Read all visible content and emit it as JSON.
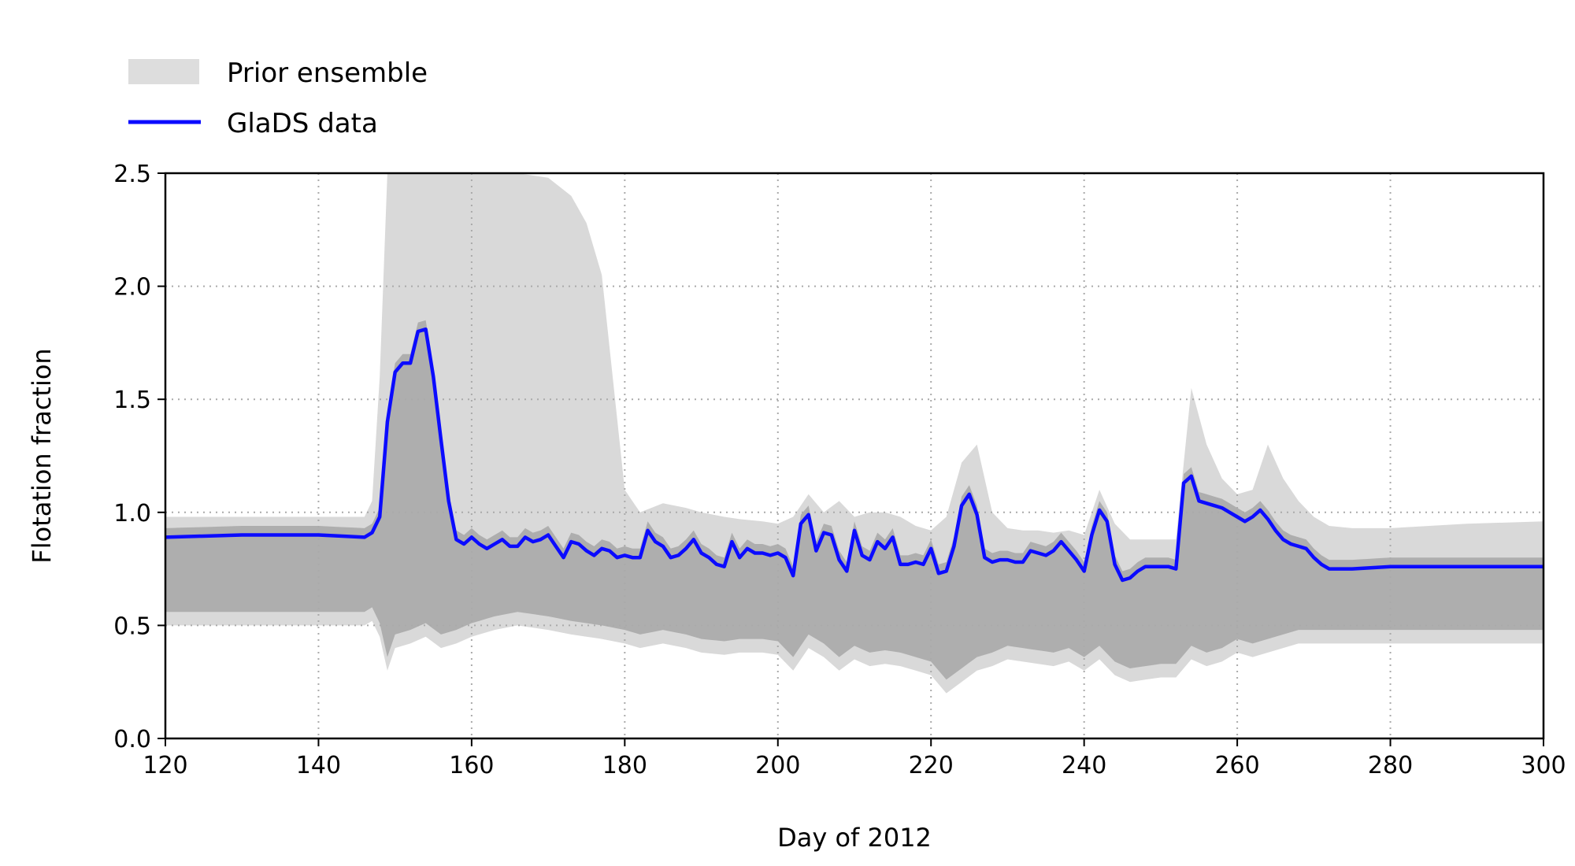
{
  "chart_data": {
    "type": "line",
    "title": "",
    "xlabel": "Day of 2012",
    "ylabel": "Flotation fraction",
    "xlim": [
      120,
      300
    ],
    "ylim": [
      0.0,
      2.5
    ],
    "xticks": [
      120,
      140,
      160,
      180,
      200,
      220,
      240,
      260,
      280,
      300
    ],
    "yticks": [
      0.0,
      0.5,
      1.0,
      1.5,
      2.0,
      2.5
    ],
    "xtick_labels": [
      "120",
      "140",
      "160",
      "180",
      "200",
      "220",
      "240",
      "260",
      "280",
      "300"
    ],
    "ytick_labels": [
      "0.0",
      "0.5",
      "1.0",
      "1.5",
      "2.0",
      "2.5"
    ],
    "grid": true,
    "grid_style": "dotted",
    "legend_position": "above-left",
    "legend": [
      {
        "label": "Prior ensemble",
        "type": "patch",
        "color": "#dddddd"
      },
      {
        "label": "GlaDS data",
        "type": "line",
        "color": "#0b0bff"
      }
    ],
    "colors": {
      "glads": "#0b0bff",
      "ensemble_light": "#d9d9d9",
      "ensemble_dark": "#8a8a8a"
    },
    "series": [
      {
        "name": "GlaDS data",
        "x": [
          120,
          130,
          140,
          146,
          147,
          148,
          149,
          150,
          151,
          152,
          153,
          154,
          155,
          156,
          157,
          158,
          159,
          160,
          161,
          162,
          163,
          164,
          165,
          166,
          167,
          168,
          169,
          170,
          171,
          172,
          173,
          174,
          175,
          176,
          177,
          178,
          179,
          180,
          181,
          182,
          183,
          184,
          185,
          186,
          187,
          188,
          189,
          190,
          191,
          192,
          193,
          194,
          195,
          196,
          197,
          198,
          199,
          200,
          201,
          202,
          203,
          204,
          205,
          206,
          207,
          208,
          209,
          210,
          211,
          212,
          213,
          214,
          215,
          216,
          217,
          218,
          219,
          220,
          221,
          222,
          223,
          224,
          225,
          226,
          227,
          228,
          229,
          230,
          231,
          232,
          233,
          234,
          235,
          236,
          237,
          238,
          239,
          240,
          241,
          242,
          243,
          244,
          245,
          246,
          247,
          248,
          249,
          250,
          251,
          252,
          253,
          254,
          255,
          256,
          257,
          258,
          259,
          260,
          261,
          262,
          263,
          264,
          265,
          266,
          267,
          268,
          269,
          270,
          271,
          272,
          273,
          275,
          280,
          290,
          300
        ],
        "y": [
          0.89,
          0.9,
          0.9,
          0.89,
          0.91,
          0.98,
          1.4,
          1.62,
          1.66,
          1.66,
          1.8,
          1.81,
          1.6,
          1.32,
          1.05,
          0.88,
          0.86,
          0.89,
          0.86,
          0.84,
          0.86,
          0.88,
          0.85,
          0.85,
          0.89,
          0.87,
          0.88,
          0.9,
          0.85,
          0.8,
          0.87,
          0.86,
          0.83,
          0.81,
          0.84,
          0.83,
          0.8,
          0.81,
          0.8,
          0.8,
          0.92,
          0.87,
          0.85,
          0.8,
          0.81,
          0.84,
          0.88,
          0.82,
          0.8,
          0.77,
          0.76,
          0.87,
          0.8,
          0.84,
          0.82,
          0.82,
          0.81,
          0.82,
          0.8,
          0.72,
          0.95,
          0.99,
          0.83,
          0.91,
          0.9,
          0.79,
          0.74,
          0.92,
          0.81,
          0.79,
          0.87,
          0.84,
          0.89,
          0.77,
          0.77,
          0.78,
          0.77,
          0.84,
          0.73,
          0.74,
          0.85,
          1.03,
          1.08,
          0.99,
          0.8,
          0.78,
          0.79,
          0.79,
          0.78,
          0.78,
          0.83,
          0.82,
          0.81,
          0.83,
          0.87,
          0.83,
          0.79,
          0.74,
          0.9,
          1.01,
          0.96,
          0.77,
          0.7,
          0.71,
          0.74,
          0.76,
          0.76,
          0.76,
          0.76,
          0.75,
          1.13,
          1.16,
          1.05,
          1.04,
          1.03,
          1.02,
          1.0,
          0.98,
          0.96,
          0.98,
          1.01,
          0.97,
          0.92,
          0.88,
          0.86,
          0.85,
          0.84,
          0.8,
          0.77,
          0.75,
          0.75,
          0.75,
          0.76,
          0.76,
          0.76
        ]
      }
    ],
    "prior_ensemble_envelope": {
      "x": [
        120,
        146,
        147,
        148,
        149,
        150,
        152,
        154,
        156,
        158,
        160,
        163,
        166,
        170,
        173,
        175,
        177,
        180,
        182,
        185,
        188,
        190,
        193,
        195,
        198,
        200,
        202,
        204,
        206,
        208,
        210,
        212,
        214,
        216,
        218,
        220,
        222,
        224,
        226,
        228,
        230,
        232,
        234,
        236,
        238,
        240,
        242,
        244,
        246,
        248,
        250,
        252,
        254,
        256,
        258,
        260,
        262,
        264,
        266,
        268,
        270,
        272,
        275,
        280,
        290,
        300
      ],
      "upper": [
        0.98,
        0.98,
        1.05,
        1.6,
        2.5,
        2.5,
        2.5,
        2.5,
        2.5,
        2.5,
        2.5,
        2.5,
        2.5,
        2.48,
        2.4,
        2.28,
        2.05,
        1.1,
        1.0,
        1.04,
        1.02,
        1.0,
        0.98,
        0.97,
        0.96,
        0.95,
        0.98,
        1.08,
        1.0,
        1.05,
        0.98,
        1.0,
        1.0,
        0.98,
        0.94,
        0.92,
        0.98,
        1.22,
        1.3,
        1.0,
        0.93,
        0.92,
        0.92,
        0.91,
        0.92,
        0.9,
        1.1,
        0.95,
        0.88,
        0.88,
        0.88,
        0.88,
        1.55,
        1.3,
        1.15,
        1.08,
        1.1,
        1.3,
        1.15,
        1.05,
        0.98,
        0.94,
        0.93,
        0.93,
        0.95,
        0.96
      ],
      "lower": [
        0.5,
        0.5,
        0.52,
        0.45,
        0.3,
        0.4,
        0.42,
        0.45,
        0.4,
        0.42,
        0.45,
        0.48,
        0.5,
        0.48,
        0.46,
        0.45,
        0.44,
        0.42,
        0.4,
        0.42,
        0.4,
        0.38,
        0.37,
        0.38,
        0.38,
        0.37,
        0.3,
        0.4,
        0.36,
        0.3,
        0.35,
        0.32,
        0.33,
        0.32,
        0.3,
        0.28,
        0.2,
        0.25,
        0.3,
        0.32,
        0.35,
        0.34,
        0.33,
        0.32,
        0.34,
        0.3,
        0.35,
        0.28,
        0.25,
        0.26,
        0.27,
        0.27,
        0.35,
        0.32,
        0.34,
        0.38,
        0.36,
        0.38,
        0.4,
        0.42,
        0.42,
        0.42,
        0.42,
        0.42,
        0.42,
        0.42
      ]
    }
  }
}
